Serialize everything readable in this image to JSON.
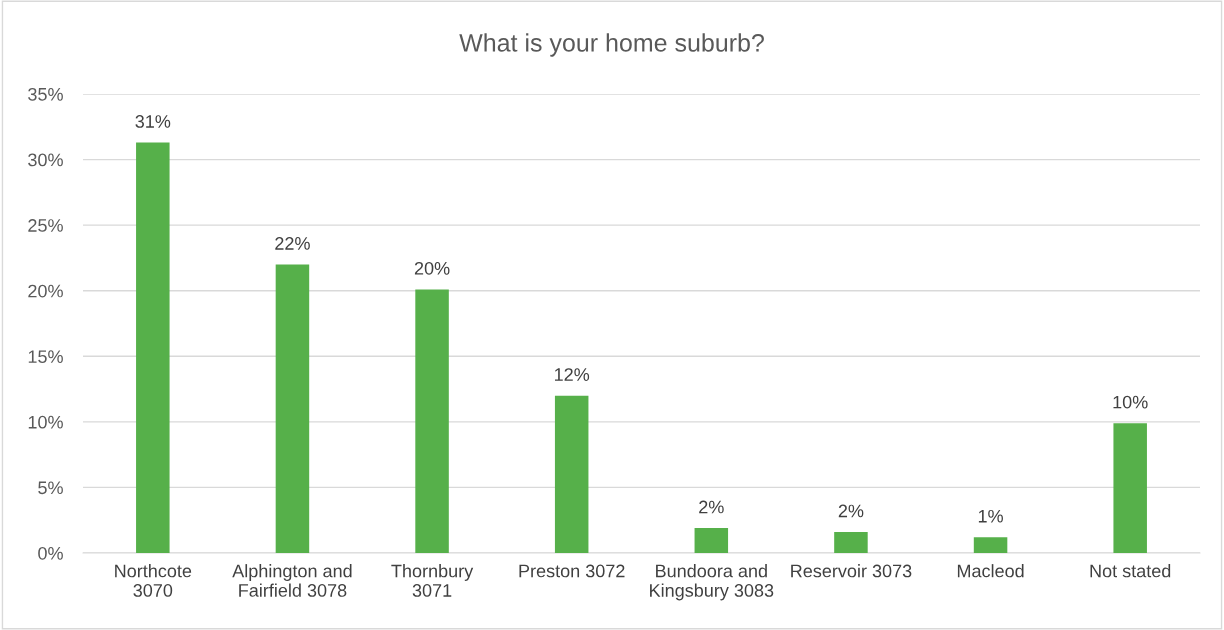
{
  "chart_data": {
    "type": "bar",
    "title": "What is your home suburb?",
    "categories": [
      "Northcote\n3070",
      "Alphington and\nFairfield 3078",
      "Thornbury\n3071",
      "Preston 3072",
      "Bundoora and\nKingsbury 3083",
      "Reservoir 3073",
      "Macleod",
      "Not stated"
    ],
    "values": [
      31.3,
      22.0,
      20.1,
      12.0,
      1.9,
      1.6,
      1.2,
      9.9
    ],
    "value_labels": [
      "31%",
      "22%",
      "20%",
      "12%",
      "2%",
      "2%",
      "1%",
      "10%"
    ],
    "color": "#56b04a",
    "ylim": [
      0,
      35
    ],
    "yticks": [
      {
        "value": 0,
        "label": "0%"
      },
      {
        "value": 5,
        "label": "5%"
      },
      {
        "value": 10,
        "label": "10%"
      },
      {
        "value": 15,
        "label": "15%"
      },
      {
        "value": 20,
        "label": "20%"
      },
      {
        "value": 25,
        "label": "25%"
      },
      {
        "value": 30,
        "label": "30%"
      },
      {
        "value": 35,
        "label": "35%"
      }
    ],
    "grid": "y"
  }
}
